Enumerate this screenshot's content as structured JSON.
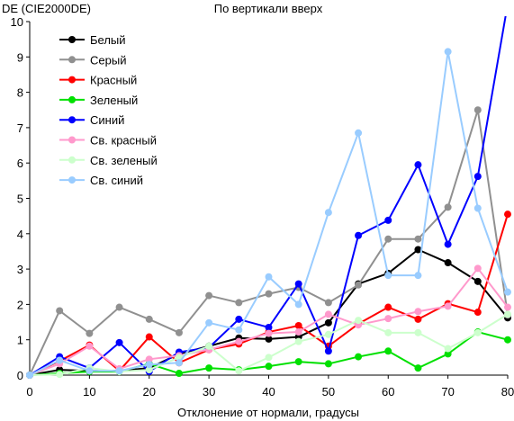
{
  "chart_data": {
    "type": "line",
    "title": "По вертикали вверх",
    "xlabel": "Отклонение от нормали, градусы",
    "ylabel": "DE (CIE2000DE)",
    "xlim": [
      0,
      80
    ],
    "ylim": [
      0,
      10
    ],
    "x_ticks": [
      0,
      10,
      20,
      30,
      40,
      50,
      60,
      70,
      80
    ],
    "y_ticks": [
      0,
      1,
      2,
      3,
      4,
      5,
      6,
      7,
      8,
      9,
      10
    ],
    "grid": false,
    "legend_position": "top-left",
    "x": [
      0,
      5,
      10,
      15,
      20,
      25,
      30,
      35,
      40,
      45,
      50,
      55,
      60,
      65,
      70,
      75,
      80
    ],
    "series": [
      {
        "name": "Белый",
        "color": "#000000",
        "values": [
          0,
          0.15,
          0.12,
          0.12,
          0.2,
          0.6,
          0.82,
          1.05,
          1.02,
          1.08,
          1.48,
          2.58,
          2.88,
          3.55,
          3.18,
          2.65,
          1.62
        ]
      },
      {
        "name": "Серый",
        "color": "#909090",
        "values": [
          0,
          1.82,
          1.18,
          1.92,
          1.58,
          1.2,
          2.25,
          2.05,
          2.3,
          2.48,
          2.05,
          2.55,
          3.85,
          3.85,
          4.75,
          7.5,
          1.7
        ]
      },
      {
        "name": "Красный",
        "color": "#ff0000",
        "values": [
          0,
          0.4,
          0.85,
          0.12,
          1.08,
          0.35,
          0.72,
          0.88,
          1.22,
          1.4,
          0.82,
          1.45,
          1.92,
          1.58,
          2.02,
          1.78,
          4.55
        ]
      },
      {
        "name": "Зеленый",
        "color": "#00e000",
        "values": [
          0,
          0.05,
          0.1,
          0.1,
          0.32,
          0.05,
          0.2,
          0.15,
          0.25,
          0.38,
          0.32,
          0.52,
          0.68,
          0.2,
          0.6,
          1.22,
          1.0
        ]
      },
      {
        "name": "Синий",
        "color": "#0000ff",
        "values": [
          0,
          0.52,
          0.2,
          0.92,
          0.1,
          0.65,
          0.78,
          1.58,
          1.35,
          2.58,
          0.68,
          3.95,
          4.38,
          5.95,
          3.7,
          5.62,
          10.5
        ]
      },
      {
        "name": "Св. красный",
        "color": "#ff99cc",
        "values": [
          0,
          0.32,
          0.82,
          0.18,
          0.45,
          0.55,
          0.72,
          0.95,
          1.18,
          1.22,
          1.72,
          1.42,
          1.6,
          1.8,
          1.95,
          3.02,
          1.92
        ]
      },
      {
        "name": "Св. зеленый",
        "color": "#ccffcc",
        "values": [
          0,
          0.02,
          0.2,
          0.1,
          0.15,
          0.5,
          0.82,
          0.12,
          0.5,
          0.95,
          1.15,
          1.55,
          1.2,
          1.2,
          0.75,
          1.2,
          1.72
        ]
      },
      {
        "name": "Св. синий",
        "color": "#99ccff",
        "values": [
          0,
          0.42,
          0.12,
          0.12,
          0.3,
          0.35,
          1.48,
          1.28,
          2.78,
          2.0,
          4.6,
          6.85,
          2.82,
          2.82,
          9.15,
          4.72,
          2.35
        ]
      }
    ]
  }
}
